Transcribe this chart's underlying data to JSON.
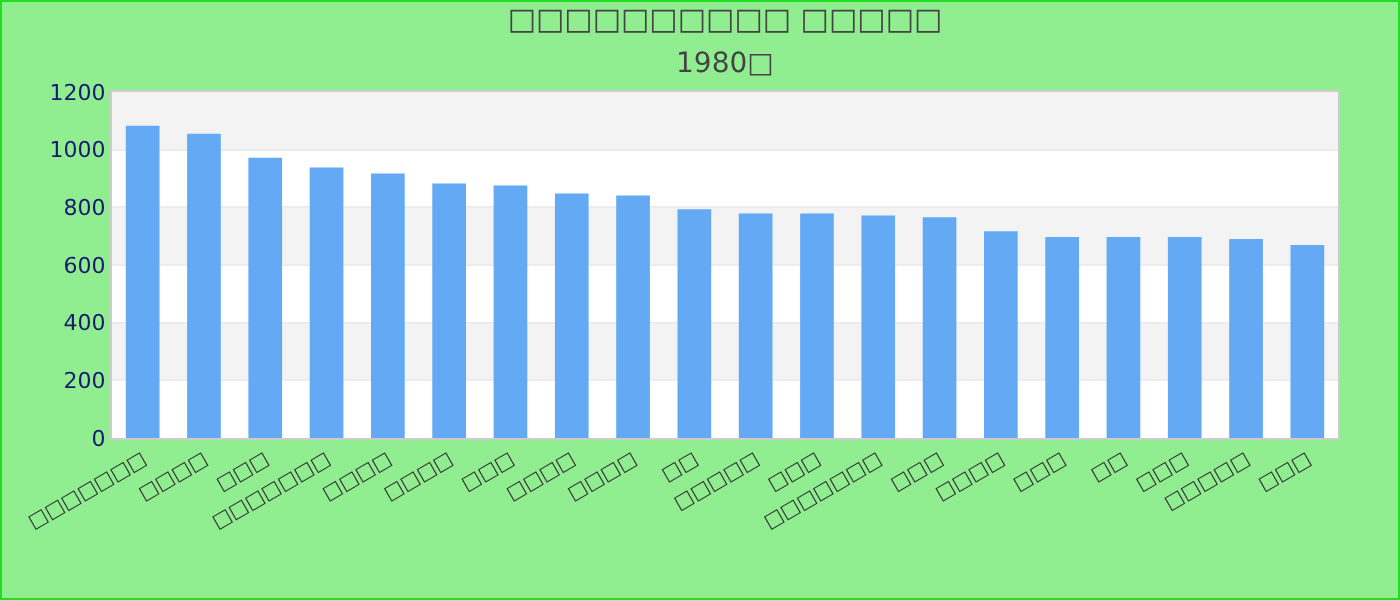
{
  "chart_data": {
    "type": "bar",
    "title": "□□□□□□□□□□ □□□□□",
    "subtitle": "1980□",
    "categories": [
      "□□□□□□□",
      "□□□□",
      "□□□",
      "□□□□□□□",
      "□□□□",
      "□□□□",
      "□□□",
      "□□□□",
      "□□□□",
      "□□",
      "□□□□□",
      "□□□",
      "□□□□□□□",
      "□□□",
      "□□□□",
      "□□□",
      "□□",
      "□□□",
      "□□□□□",
      "□□□"
    ],
    "values": [
      1083,
      1055,
      972,
      938,
      917,
      883,
      876,
      848,
      841,
      793,
      779,
      779,
      772,
      766,
      717,
      697,
      697,
      697,
      690,
      669
    ],
    "color": "#63a9f3",
    "ylim": [
      0,
      1200
    ],
    "yticks": [
      0,
      200,
      400,
      600,
      800,
      1000,
      1200
    ],
    "grid": "y"
  }
}
